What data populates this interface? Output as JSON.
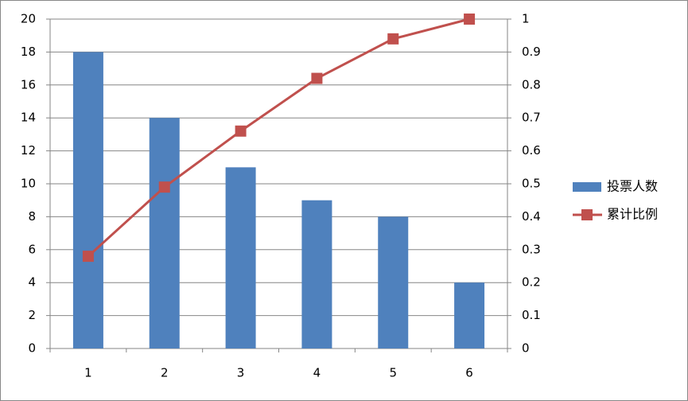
{
  "chart_data": {
    "type": "bar-line",
    "categories": [
      "1",
      "2",
      "3",
      "4",
      "5",
      "6"
    ],
    "series": [
      {
        "name": "投票人数",
        "type": "bar",
        "axis": "y",
        "color": "#4f81bd",
        "values": [
          18,
          14,
          11,
          9,
          8,
          4
        ]
      },
      {
        "name": "累计比例",
        "type": "line",
        "axis": "y2",
        "color": "#c0504d",
        "values": [
          0.28,
          0.49,
          0.66,
          0.82,
          0.94,
          1
        ]
      }
    ],
    "ylim": [
      0,
      20
    ],
    "yticks": [
      0,
      2,
      4,
      6,
      8,
      10,
      12,
      14,
      16,
      18,
      20
    ],
    "y2lim": [
      0,
      1
    ],
    "y2ticks": [
      0,
      0.1,
      0.2,
      0.3,
      0.4,
      0.5,
      0.6,
      0.7,
      0.8,
      0.9,
      1
    ],
    "grid": true,
    "legend": "right"
  }
}
